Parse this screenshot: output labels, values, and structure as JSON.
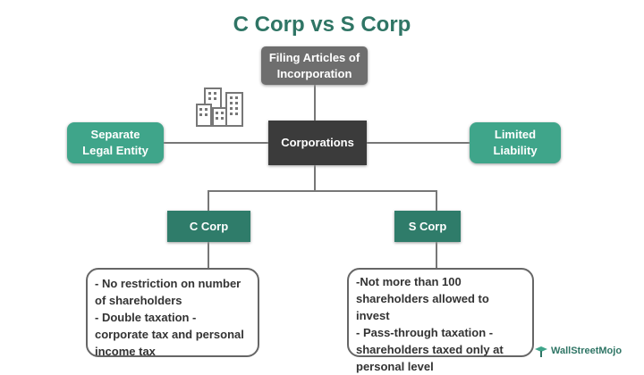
{
  "title": "C Corp vs S Corp",
  "nodes": {
    "filing": "Filing Articles of Incorporation",
    "corporations": "Corporations",
    "separate_legal_entity": "Separate Legal Entity",
    "limited_liability": "Limited Liability",
    "c_corp": "C Corp",
    "s_corp": "S Corp"
  },
  "c_corp_notes": [
    "- No restriction on number of shareholders",
    "- Double taxation - corporate tax and personal income tax"
  ],
  "s_corp_notes": [
    "-Not more than 100 shareholders allowed to invest",
    "- Pass-through taxation - shareholders taxed only at personal level"
  ],
  "watermark": "WallStreetMojo",
  "colors": {
    "teal": "#3fa58a",
    "dark_green": "#2f7c6a",
    "title": "#2f7565",
    "gray": "#6e6e6e",
    "dark": "#3b3b3b"
  }
}
